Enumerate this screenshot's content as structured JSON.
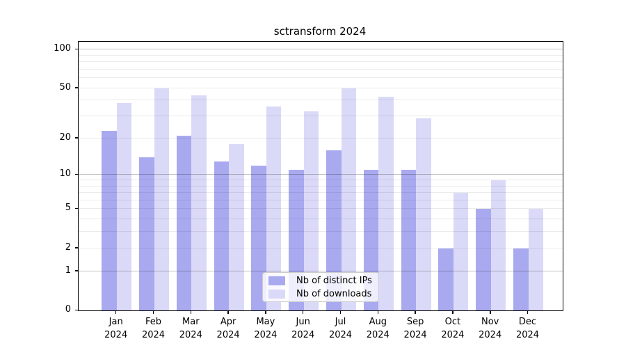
{
  "title": "sctransform 2024",
  "chart_data": {
    "type": "bar",
    "title": "sctransform 2024",
    "categories": [
      "Jan",
      "Feb",
      "Mar",
      "Apr",
      "May",
      "Jun",
      "Jul",
      "Aug",
      "Sep",
      "Oct",
      "Nov",
      "Dec"
    ],
    "category_year": "2024",
    "series": [
      {
        "name": "Nb of distinct IPs",
        "key": "distinct-ips",
        "color": "#a9a9f0",
        "values": [
          23,
          14,
          21,
          13,
          12,
          11,
          16,
          11,
          11,
          2,
          5,
          2
        ]
      },
      {
        "name": "Nb of downloads",
        "key": "downloads",
        "color": "#dadaf8",
        "values": [
          38,
          50,
          44,
          18,
          36,
          33,
          50,
          43,
          29,
          7,
          9,
          5
        ]
      }
    ],
    "y_axis": {
      "scale": "log10(1+x)",
      "tick_labels": [
        0,
        1,
        2,
        5,
        10,
        20,
        50,
        100
      ],
      "strong_gridlines": [
        1,
        10,
        100
      ],
      "minor_gridlines": [
        2,
        3,
        4,
        5,
        6,
        7,
        8,
        9,
        20,
        30,
        40,
        50,
        60,
        70,
        80,
        90
      ],
      "ylim": [
        0,
        100
      ]
    },
    "legend": {
      "position": "lower center",
      "entries": [
        "Nb of distinct IPs",
        "Nb of downloads"
      ]
    },
    "grid": "horizontal",
    "colors": {
      "bar_distinct_ips": "#a9a9f0",
      "bar_downloads": "#dadaf8",
      "axis": "#000000"
    }
  }
}
